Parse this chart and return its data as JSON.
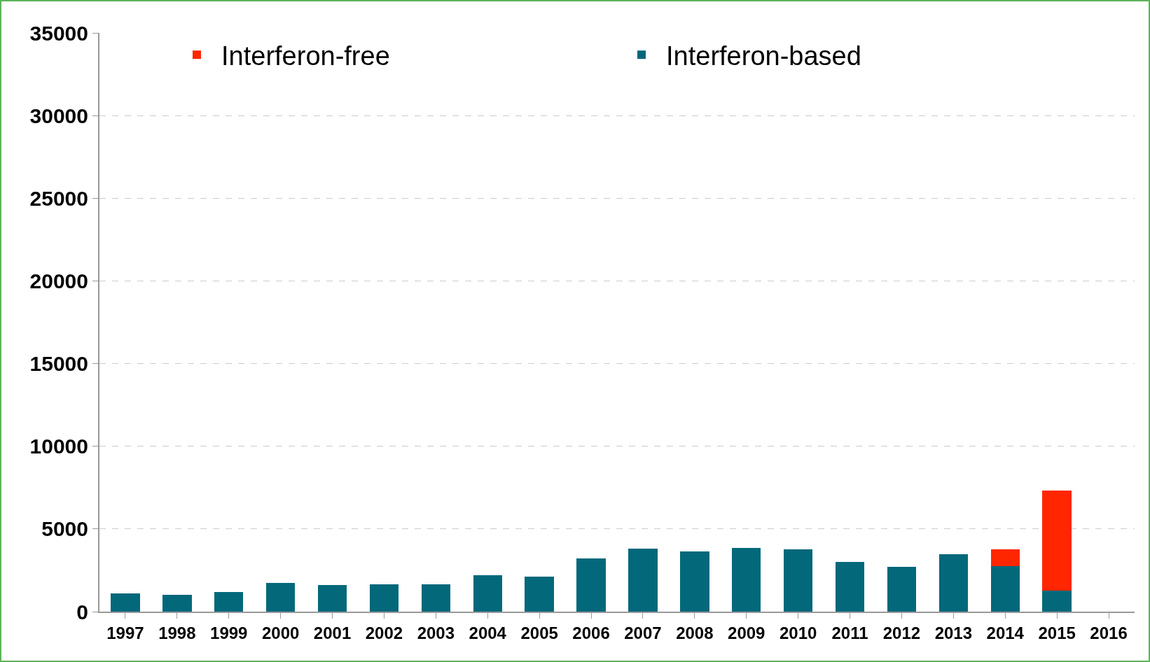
{
  "chart_data": {
    "type": "bar",
    "stacked": true,
    "categories": [
      "1997",
      "1998",
      "1999",
      "2000",
      "2001",
      "2002",
      "2003",
      "2004",
      "2005",
      "2006",
      "2007",
      "2008",
      "2009",
      "2010",
      "2011",
      "2012",
      "2013",
      "2014",
      "2015",
      "2016"
    ],
    "series": [
      {
        "name": "Interferon-based",
        "color": "#03687a",
        "values": [
          1080,
          1020,
          1190,
          1730,
          1620,
          1670,
          1670,
          2210,
          2120,
          3200,
          3800,
          3650,
          3860,
          3750,
          3010,
          2710,
          3490,
          2770,
          1270,
          0
        ]
      },
      {
        "name": "Interferon-free",
        "color": "#ff2600",
        "values": [
          0,
          0,
          0,
          0,
          0,
          0,
          0,
          0,
          0,
          0,
          0,
          0,
          0,
          0,
          0,
          0,
          0,
          980,
          6060,
          0
        ]
      }
    ],
    "ylim": [
      0,
      35000
    ],
    "yticks": [
      0,
      5000,
      10000,
      15000,
      20000,
      25000,
      30000,
      35000
    ],
    "grid": "y",
    "legend": "top"
  }
}
